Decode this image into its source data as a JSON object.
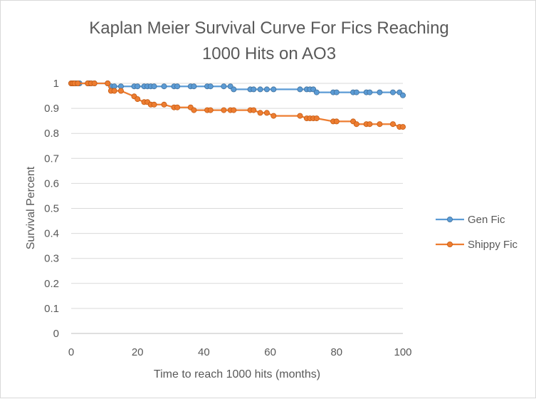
{
  "chart_data": {
    "type": "line",
    "title_lines": [
      "Kaplan Meier Survival Curve For Fics Reaching",
      "1000 Hits on AO3"
    ],
    "xlabel": "Time to reach 1000 hits (months)",
    "ylabel": "Survival Percent",
    "xlim": [
      0,
      100
    ],
    "ylim": [
      0,
      1
    ],
    "xticks": [
      0,
      20,
      40,
      60,
      80,
      100
    ],
    "yticks": [
      0,
      0.1,
      0.2,
      0.3,
      0.4,
      0.5,
      0.6,
      0.7,
      0.8,
      0.9,
      1
    ],
    "ytick_labels": [
      "0",
      "0.1",
      "0.2",
      "0.3",
      "0.4",
      "0.5",
      "0.6",
      "0.7",
      "0.8",
      "0.9",
      "1"
    ],
    "grid": true,
    "legend_position": "right",
    "series": [
      {
        "name": "Gen Fic",
        "color": "#5b9bd5",
        "marker_edge": "#41719c",
        "points": [
          [
            0,
            1
          ],
          [
            0.5,
            1
          ],
          [
            1,
            1
          ],
          [
            1.5,
            1
          ],
          [
            2.5,
            1
          ],
          [
            5,
            1
          ],
          [
            5.5,
            1
          ],
          [
            6,
            1
          ],
          [
            7,
            1
          ],
          [
            11,
            1
          ],
          [
            12,
            0.988
          ],
          [
            13,
            0.988
          ],
          [
            15,
            0.988
          ],
          [
            19,
            0.988
          ],
          [
            20,
            0.988
          ],
          [
            22,
            0.988
          ],
          [
            23,
            0.988
          ],
          [
            24,
            0.988
          ],
          [
            25,
            0.988
          ],
          [
            28,
            0.988
          ],
          [
            31,
            0.988
          ],
          [
            32,
            0.988
          ],
          [
            36,
            0.988
          ],
          [
            37,
            0.988
          ],
          [
            41,
            0.988
          ],
          [
            42,
            0.988
          ],
          [
            46,
            0.988
          ],
          [
            48,
            0.988
          ],
          [
            49,
            0.976
          ],
          [
            54,
            0.976
          ],
          [
            55,
            0.976
          ],
          [
            57,
            0.976
          ],
          [
            59,
            0.976
          ],
          [
            61,
            0.976
          ],
          [
            69,
            0.976
          ],
          [
            71,
            0.976
          ],
          [
            72,
            0.976
          ],
          [
            73,
            0.976
          ],
          [
            74,
            0.964
          ],
          [
            79,
            0.964
          ],
          [
            80,
            0.964
          ],
          [
            85,
            0.964
          ],
          [
            86,
            0.964
          ],
          [
            89,
            0.964
          ],
          [
            90,
            0.964
          ],
          [
            93,
            0.964
          ],
          [
            97,
            0.964
          ],
          [
            99,
            0.964
          ],
          [
            100,
            0.952
          ]
        ]
      },
      {
        "name": "Shippy Fic",
        "color": "#ed7d31",
        "marker_edge": "#c55a11",
        "points": [
          [
            0,
            1
          ],
          [
            0.5,
            1
          ],
          [
            1,
            1
          ],
          [
            2,
            1
          ],
          [
            5,
            1
          ],
          [
            6,
            1
          ],
          [
            7,
            1
          ],
          [
            11,
            1
          ],
          [
            12,
            0.97
          ],
          [
            13,
            0.97
          ],
          [
            15,
            0.97
          ],
          [
            19,
            0.948
          ],
          [
            20,
            0.937
          ],
          [
            22,
            0.925
          ],
          [
            23,
            0.925
          ],
          [
            24,
            0.915
          ],
          [
            25,
            0.915
          ],
          [
            28,
            0.915
          ],
          [
            31,
            0.904
          ],
          [
            32,
            0.904
          ],
          [
            36,
            0.904
          ],
          [
            37,
            0.893
          ],
          [
            41,
            0.893
          ],
          [
            42,
            0.893
          ],
          [
            46,
            0.893
          ],
          [
            48,
            0.893
          ],
          [
            49,
            0.893
          ],
          [
            54,
            0.893
          ],
          [
            55,
            0.893
          ],
          [
            57,
            0.882
          ],
          [
            59,
            0.882
          ],
          [
            61,
            0.87
          ],
          [
            69,
            0.87
          ],
          [
            71,
            0.86
          ],
          [
            72,
            0.86
          ],
          [
            73,
            0.86
          ],
          [
            74,
            0.86
          ],
          [
            79,
            0.848
          ],
          [
            80,
            0.848
          ],
          [
            85,
            0.848
          ],
          [
            86,
            0.837
          ],
          [
            89,
            0.837
          ],
          [
            90,
            0.837
          ],
          [
            93,
            0.837
          ],
          [
            97,
            0.837
          ],
          [
            99,
            0.826
          ],
          [
            100,
            0.826
          ]
        ]
      }
    ]
  }
}
